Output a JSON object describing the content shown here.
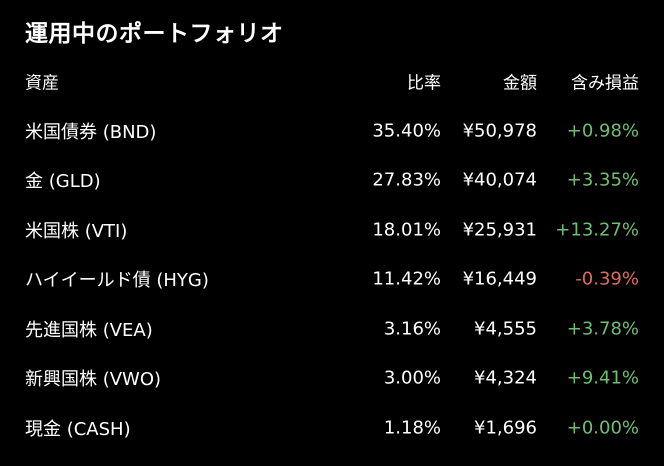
{
  "title": "運用中のポートフォリオ",
  "columns": {
    "asset": "資産",
    "ratio": "比率",
    "amount": "金額",
    "gain": "含み損益"
  },
  "colors": {
    "background": "#000000",
    "text": "#ffffff",
    "positive": "#6fbf73",
    "negative": "#e06a5f"
  },
  "rows": [
    {
      "asset": "米国債券 (BND)",
      "ratio": "35.40%",
      "amount": "¥50,978",
      "gain": "+0.98%",
      "trend": "pos"
    },
    {
      "asset": "金 (GLD)",
      "ratio": "27.83%",
      "amount": "¥40,074",
      "gain": "+3.35%",
      "trend": "pos"
    },
    {
      "asset": "米国株 (VTI)",
      "ratio": "18.01%",
      "amount": "¥25,931",
      "gain": "+13.27%",
      "trend": "pos"
    },
    {
      "asset": "ハイイールド債 (HYG)",
      "ratio": "11.42%",
      "amount": "¥16,449",
      "gain": "-0.39%",
      "trend": "neg"
    },
    {
      "asset": "先進国株 (VEA)",
      "ratio": "3.16%",
      "amount": "¥4,555",
      "gain": "+3.78%",
      "trend": "pos"
    },
    {
      "asset": "新興国株 (VWO)",
      "ratio": "3.00%",
      "amount": "¥4,324",
      "gain": "+9.41%",
      "trend": "pos"
    },
    {
      "asset": "現金 (CASH)",
      "ratio": "1.18%",
      "amount": "¥1,696",
      "gain": "+0.00%",
      "trend": "zero"
    }
  ]
}
